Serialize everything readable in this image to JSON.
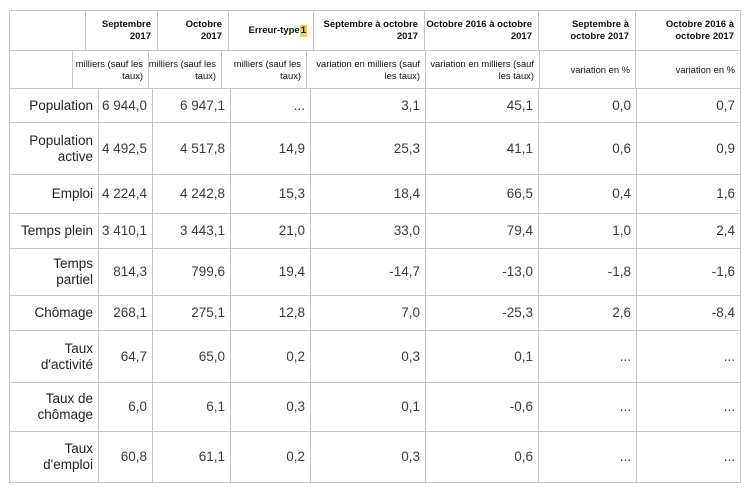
{
  "table": {
    "header": {
      "columns": [
        {
          "label": "Septembre\n2017"
        },
        {
          "label": "Octobre\n2017"
        },
        {
          "label": "Erreur-type",
          "footnote": "1"
        },
        {
          "label": "Septembre à octobre\n2017"
        },
        {
          "label": "Octobre 2016 à octobre\n2017"
        },
        {
          "label": "Septembre à\noctobre 2017"
        },
        {
          "label": "Octobre 2016 à\noctobre 2017"
        }
      ],
      "units": [
        "milliers (sauf les\ntaux)",
        "milliers (sauf les\ntaux)",
        "milliers (sauf les\ntaux)",
        "variation en milliers (sauf\nles taux)",
        "variation en milliers (sauf\nles taux)",
        "variation en %",
        "variation en %"
      ]
    },
    "rows": [
      {
        "label": "Population",
        "values": [
          "6 944,0",
          "6 947,1",
          "...",
          "3,1",
          "45,1",
          "0,0",
          "0,7"
        ]
      },
      {
        "label": "Population\nactive",
        "values": [
          "4 492,5",
          "4 517,8",
          "14,9",
          "25,3",
          "41,1",
          "0,6",
          "0,9"
        ]
      },
      {
        "label": "Emploi",
        "values": [
          "4 224,4",
          "4 242,8",
          "15,3",
          "18,4",
          "66,5",
          "0,4",
          "1,6"
        ]
      },
      {
        "label": "Temps plein",
        "values": [
          "3 410,1",
          "3 443,1",
          "21,0",
          "33,0",
          "79,4",
          "1,0",
          "2,4"
        ]
      },
      {
        "label": "Temps\npartiel",
        "values": [
          "814,3",
          "799,6",
          "19,4",
          "-14,7",
          "-13,0",
          "-1,8",
          "-1,6"
        ]
      },
      {
        "label": "Chômage",
        "values": [
          "268,1",
          "275,1",
          "12,8",
          "7,0",
          "-25,3",
          "2,6",
          "-8,4"
        ]
      },
      {
        "label": "Taux\nd'activité",
        "values": [
          "64,7",
          "65,0",
          "0,2",
          "0,3",
          "0,1",
          "...",
          "..."
        ]
      },
      {
        "label": "Taux de\nchômage",
        "values": [
          "6,0",
          "6,1",
          "0,3",
          "0,1",
          "-0,6",
          "...",
          "..."
        ]
      },
      {
        "label": "Taux\nd'emploi",
        "values": [
          "60,8",
          "61,1",
          "0,2",
          "0,3",
          "0,6",
          "...",
          "..."
        ]
      }
    ],
    "highlight_color": "#f9cf43",
    "border_color": "#c8c8c8"
  },
  "chart_data": {
    "type": "table",
    "title": "",
    "column_headers": [
      "Septembre 2017",
      "Octobre 2017",
      "Erreur-type1",
      "Septembre à octobre 2017",
      "Octobre 2016 à octobre 2017",
      "Septembre à octobre 2017",
      "Octobre 2016 à octobre 2017"
    ],
    "column_units": [
      "milliers (sauf les taux)",
      "milliers (sauf les taux)",
      "milliers (sauf les taux)",
      "variation en milliers (sauf les taux)",
      "variation en milliers (sauf les taux)",
      "variation en %",
      "variation en %"
    ],
    "rows": [
      {
        "label": "Population",
        "values": [
          6944.0,
          6947.1,
          null,
          3.1,
          45.1,
          0.0,
          0.7
        ]
      },
      {
        "label": "Population active",
        "values": [
          4492.5,
          4517.8,
          14.9,
          25.3,
          41.1,
          0.6,
          0.9
        ]
      },
      {
        "label": "Emploi",
        "values": [
          4224.4,
          4242.8,
          15.3,
          18.4,
          66.5,
          0.4,
          1.6
        ]
      },
      {
        "label": "Temps plein",
        "values": [
          3410.1,
          3443.1,
          21.0,
          33.0,
          79.4,
          1.0,
          2.4
        ]
      },
      {
        "label": "Temps partiel",
        "values": [
          814.3,
          799.6,
          19.4,
          -14.7,
          -13.0,
          -1.8,
          -1.6
        ]
      },
      {
        "label": "Chômage",
        "values": [
          268.1,
          275.1,
          12.8,
          7.0,
          -25.3,
          2.6,
          -8.4
        ]
      },
      {
        "label": "Taux d'activité",
        "values": [
          64.7,
          65.0,
          0.2,
          0.3,
          0.1,
          null,
          null
        ]
      },
      {
        "label": "Taux de chômage",
        "values": [
          6.0,
          6.1,
          0.3,
          0.1,
          -0.6,
          null,
          null
        ]
      },
      {
        "label": "Taux d'emploi",
        "values": [
          60.8,
          61.1,
          0.2,
          0.3,
          0.6,
          null,
          null
        ]
      }
    ],
    "notes": "Footnote marker 1 on Erreur-type is highlighted in yellow; '...' indicates value not applicable"
  }
}
